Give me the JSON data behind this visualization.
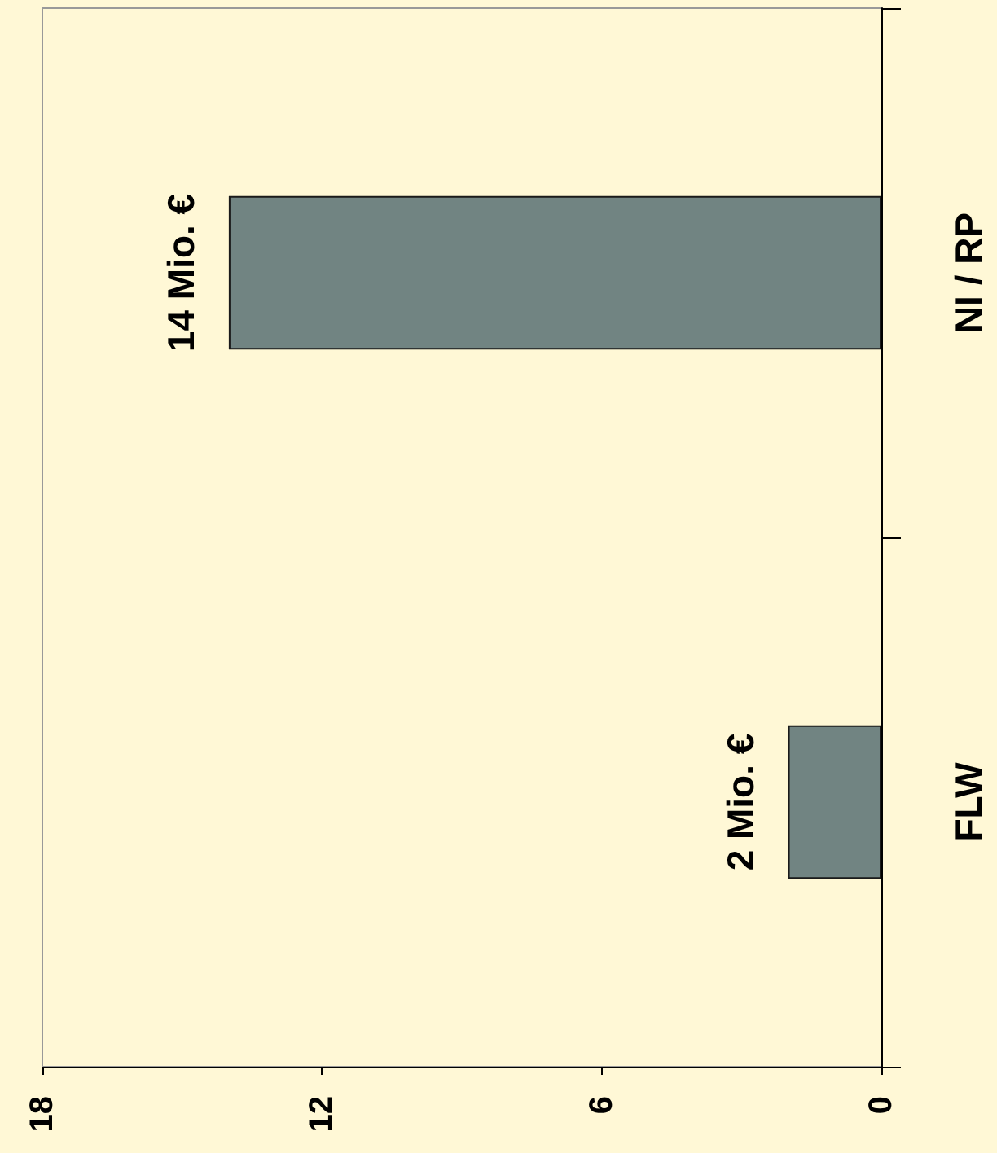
{
  "chart_data": {
    "type": "bar",
    "orientation": "horizontal",
    "categories": [
      "NI / RP",
      "FLW"
    ],
    "values": [
      14,
      2
    ],
    "color": "#718482",
    "value_labels": [
      "14 Mio. €",
      "2 Mio. €"
    ],
    "xlim": [
      18,
      0
    ],
    "xticks": [
      0,
      6,
      12,
      18
    ]
  }
}
